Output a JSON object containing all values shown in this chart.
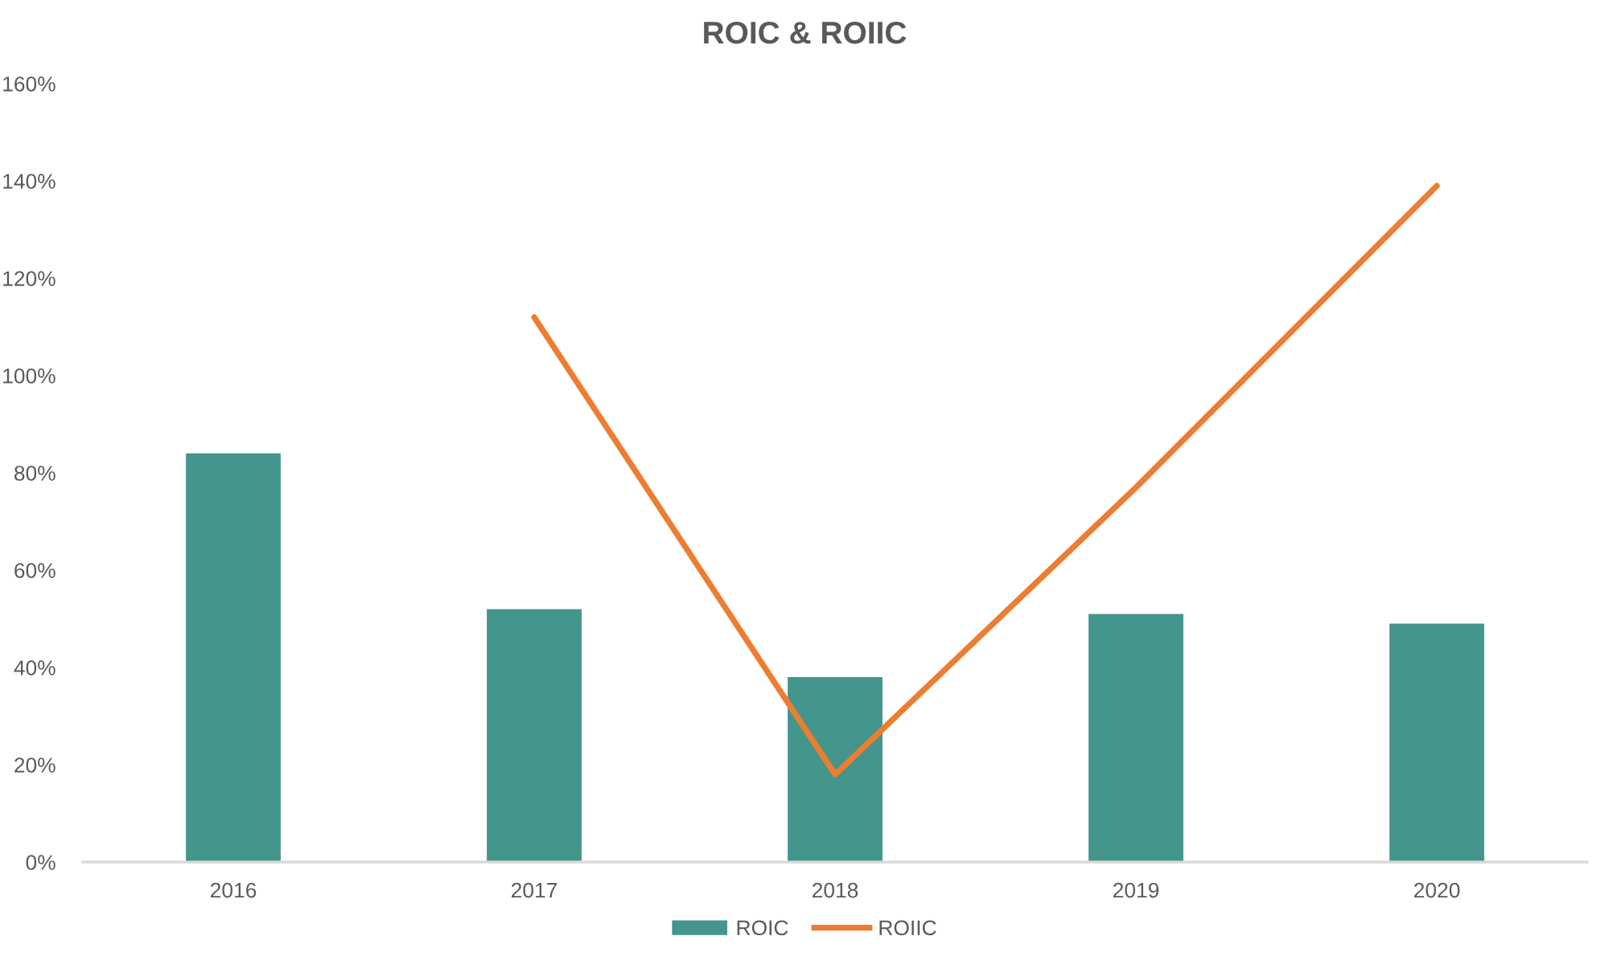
{
  "chart_data": {
    "type": "bar",
    "title": "ROIC & ROIIC",
    "categories": [
      "2016",
      "2017",
      "2018",
      "2019",
      "2020"
    ],
    "series": [
      {
        "name": "ROIC",
        "color": "#44958b",
        "values": [
          84,
          52,
          38,
          51,
          49
        ]
      },
      {
        "name": "ROIIC",
        "type": "line",
        "color": "#ed7d31",
        "values": [
          null,
          112,
          18,
          77,
          139
        ]
      }
    ],
    "ylim": [
      0,
      160
    ],
    "yticks": [
      {
        "value": 0,
        "label": "0%"
      },
      {
        "value": 20,
        "label": "20%"
      },
      {
        "value": 40,
        "label": "40%"
      },
      {
        "value": 60,
        "label": "60%"
      },
      {
        "value": 80,
        "label": "80%"
      },
      {
        "value": 100,
        "label": "100%"
      },
      {
        "value": 120,
        "label": "120%"
      },
      {
        "value": 140,
        "label": "140%"
      },
      {
        "value": 160,
        "label": "160%"
      }
    ],
    "grid": false,
    "legend": "bottom"
  }
}
